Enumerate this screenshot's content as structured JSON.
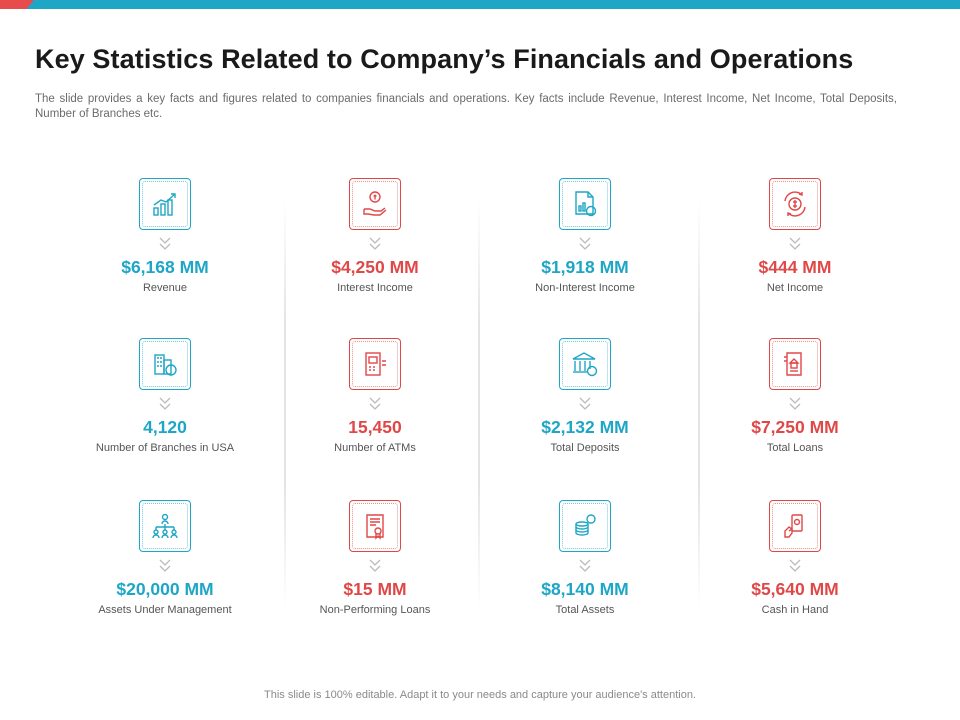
{
  "header": {
    "title": "Key Statistics Related to Company’s Financials and Operations",
    "subtitle": "The slide provides  a key facts and figures related to companies financials and operations. Key facts include Revenue,  Interest Income, Net Income, Total Deposits, Number of Branches etc."
  },
  "colors": {
    "teal": "#1ea6c6",
    "red": "#e04848",
    "topbar": "#1ea6c6"
  },
  "stats": [
    {
      "value": "$6,168 MM",
      "label": "Revenue",
      "icon": "growth-chart-icon",
      "color": "teal"
    },
    {
      "value": "$4,250 MM",
      "label": "Interest Income",
      "icon": "hand-coin-icon",
      "color": "red"
    },
    {
      "value": "$1,918 MM",
      "label": "Non-Interest Income",
      "icon": "document-dollar-icon",
      "color": "teal"
    },
    {
      "value": "$444 MM",
      "label": "Net Income",
      "icon": "dollar-cycle-icon",
      "color": "red"
    },
    {
      "value": "4,120",
      "label": "Number of Branches in USA",
      "icon": "buildings-dollar-icon",
      "color": "teal"
    },
    {
      "value": "15,450",
      "label": "Number of ATMs",
      "icon": "atm-machine-icon",
      "color": "red"
    },
    {
      "value": "$2,132 MM",
      "label": "Total Deposits",
      "icon": "bank-icon",
      "color": "teal"
    },
    {
      "value": "$7,250 MM",
      "label": "Total Loans",
      "icon": "house-document-icon",
      "color": "red"
    },
    {
      "value": "$20,000 MM",
      "label": "Assets Under Management",
      "icon": "org-chart-icon",
      "color": "teal"
    },
    {
      "value": "$15 MM",
      "label": "Non-Performing Loans",
      "icon": "certificate-icon",
      "color": "red"
    },
    {
      "value": "$8,140 MM",
      "label": "Total Assets",
      "icon": "coin-stack-icon",
      "color": "teal"
    },
    {
      "value": "$5,640 MM",
      "label": "Cash in Hand",
      "icon": "hand-phone-icon",
      "color": "red"
    }
  ],
  "footer": {
    "text": "This slide is 100% editable. Adapt it to your needs and capture your audience's attention."
  }
}
